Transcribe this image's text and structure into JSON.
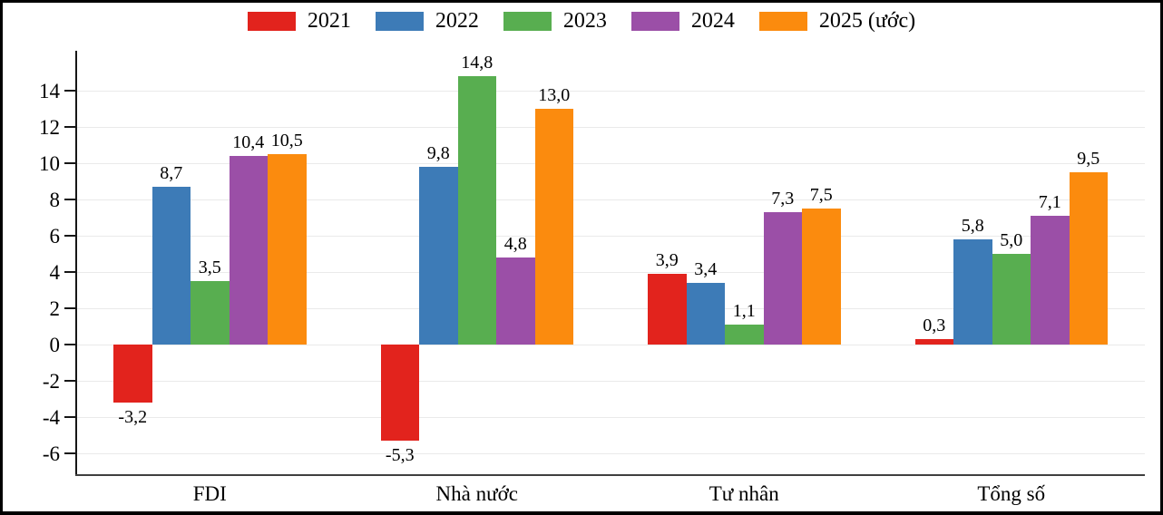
{
  "chart_data": {
    "type": "bar",
    "title": "",
    "xlabel": "",
    "ylabel": "",
    "categories": [
      "FDI",
      "Nhà nước",
      "Tư nhân",
      "Tổng số"
    ],
    "series": [
      {
        "name": "2021",
        "color": "#e2231d",
        "values": [
          -3.2,
          -5.3,
          3.9,
          0.3
        ],
        "labels": [
          "-3,2",
          "-5,3",
          "3,9",
          "0,3"
        ]
      },
      {
        "name": "2022",
        "color": "#3d7bb7",
        "values": [
          8.7,
          9.8,
          3.4,
          5.8
        ],
        "labels": [
          "8,7",
          "9,8",
          "3,4",
          "5,8"
        ]
      },
      {
        "name": "2023",
        "color": "#58ae50",
        "values": [
          3.5,
          14.8,
          1.1,
          5.0
        ],
        "labels": [
          "3,5",
          "14,8",
          "1,1",
          "5,0"
        ]
      },
      {
        "name": "2024",
        "color": "#9b4fa7",
        "values": [
          10.4,
          4.8,
          7.3,
          7.1
        ],
        "labels": [
          "10,4",
          "4,8",
          "7,3",
          "7,1"
        ]
      },
      {
        "name": "2025 (ước)",
        "color": "#fb8b0e",
        "values": [
          10.5,
          13.0,
          7.5,
          9.5
        ],
        "labels": [
          "10,5",
          "13,0",
          "7,5",
          "9,5"
        ]
      }
    ],
    "y_axis": {
      "ticks": [
        -6,
        -4,
        -2,
        0,
        2,
        4,
        6,
        8,
        10,
        12,
        14
      ],
      "min": -7.2,
      "max": 16.2,
      "grid": true
    },
    "legend_position": "top",
    "decimal_separator": ","
  }
}
